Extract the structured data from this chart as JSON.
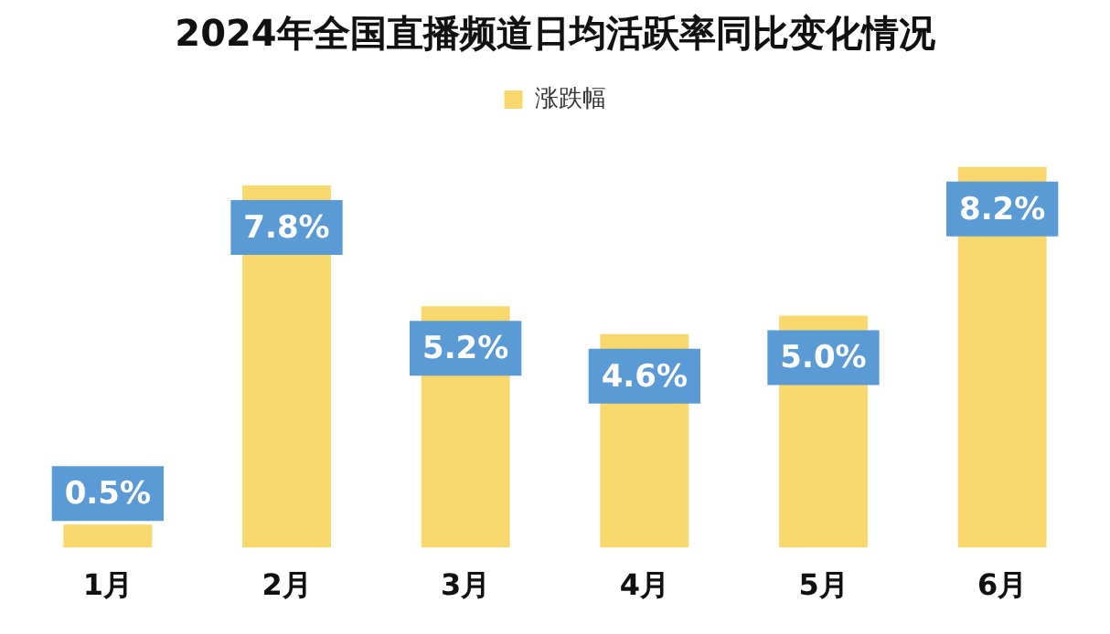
{
  "chart_data": {
    "type": "bar",
    "title": "2024年全国直播频道日均活跃率同比变化情况",
    "categories": [
      "1月",
      "2月",
      "3月",
      "4月",
      "5月",
      "6月"
    ],
    "series": [
      {
        "name": "涨跌幅",
        "color": "#f8d86c",
        "values": [
          0.5,
          7.8,
          5.2,
          4.6,
          5.0,
          8.2
        ],
        "value_labels": [
          "0.5%",
          "7.8%",
          "5.2%",
          "4.6%",
          "5.0%",
          "8.2%"
        ]
      }
    ],
    "legend": "top",
    "grid": false
  }
}
